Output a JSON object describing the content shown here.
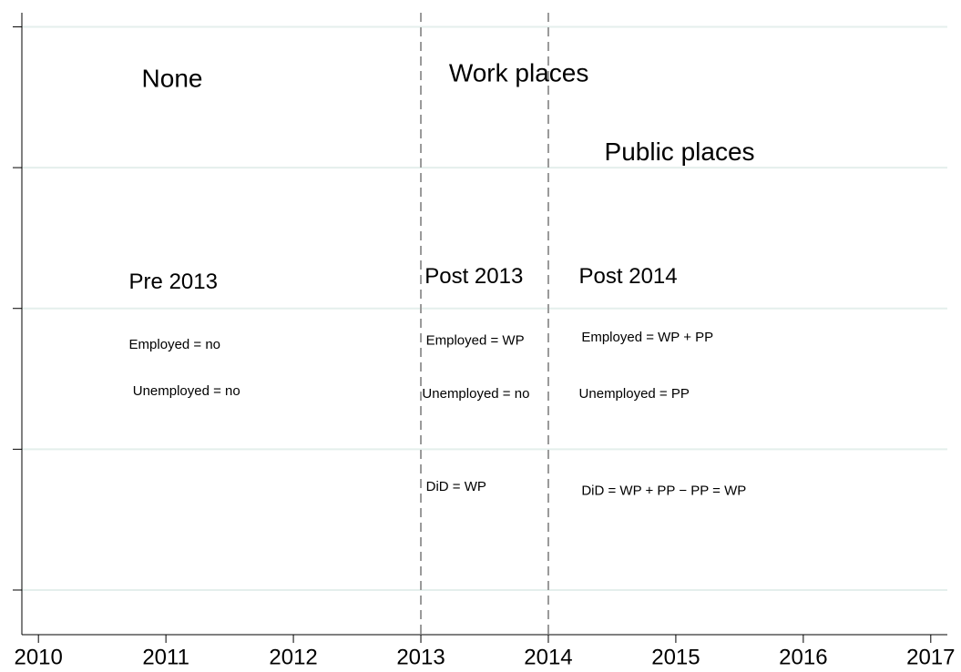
{
  "chart_data": {
    "type": "annotation",
    "xlim": [
      2009.87,
      2017.13
    ],
    "xticks": [
      2010,
      2011,
      2012,
      2013,
      2014,
      2015,
      2016,
      2017
    ],
    "ylim": [
      0.683,
      5.1
    ],
    "yticks": [
      1,
      2,
      3,
      4,
      5
    ],
    "ytick_labels": false,
    "grid": true,
    "vlines": [
      2013,
      2014
    ],
    "annotations": [
      {
        "text": "None",
        "x": 2010.81,
        "y": 4.62,
        "size": "large"
      },
      {
        "text": "Work places",
        "x": 2013.22,
        "y": 4.66,
        "size": "large"
      },
      {
        "text": "Public places",
        "x": 2014.44,
        "y": 4.1,
        "size": "large"
      },
      {
        "text": "Pre 2013",
        "x": 2010.71,
        "y": 3.18,
        "size": "medium"
      },
      {
        "text": "Post 2013",
        "x": 2013.03,
        "y": 3.22,
        "size": "medium"
      },
      {
        "text": "Post 2014",
        "x": 2014.24,
        "y": 3.22,
        "size": "medium"
      },
      {
        "text": "Employed = no",
        "x": 2010.71,
        "y": 2.74,
        "size": "small"
      },
      {
        "text": "Unemployed = no",
        "x": 2010.74,
        "y": 2.41,
        "size": "small"
      },
      {
        "text": "Employed = WP",
        "x": 2013.04,
        "y": 2.77,
        "size": "small"
      },
      {
        "text": "Unemployed = no",
        "x": 2013.01,
        "y": 2.39,
        "size": "small"
      },
      {
        "text": "Employed = WP + PP",
        "x": 2014.26,
        "y": 2.79,
        "size": "small"
      },
      {
        "text": "Unemployed = PP",
        "x": 2014.24,
        "y": 2.39,
        "size": "small"
      },
      {
        "text": "DiD = WP",
        "x": 2013.04,
        "y": 1.73,
        "size": "small"
      },
      {
        "text": "DiD = WP + PP − PP = WP",
        "x": 2014.26,
        "y": 1.7,
        "size": "small"
      }
    ]
  }
}
